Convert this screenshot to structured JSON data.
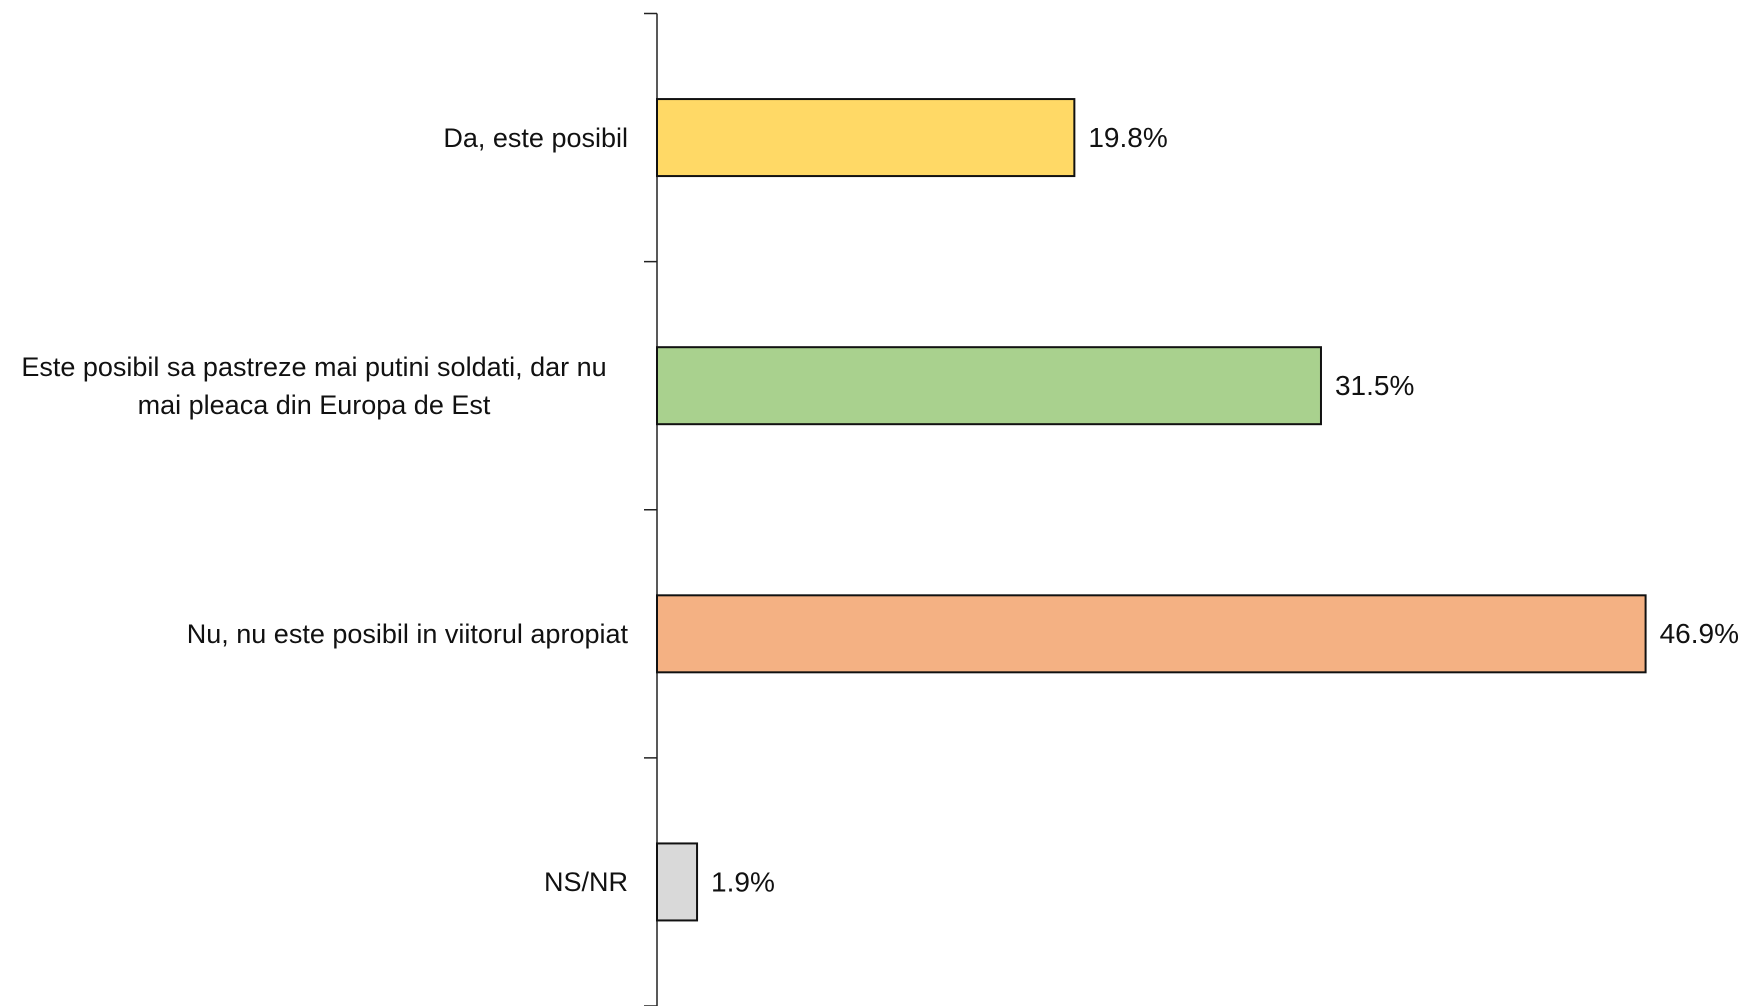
{
  "chart_data": {
    "type": "bar",
    "orientation": "horizontal",
    "categories": [
      "Da, este posibil",
      "Este posibil sa pastreze mai putini soldati, dar nu mai pleaca din Europa de Est",
      "Nu, nu este posibil in viitorul apropiat",
      "NS/NR"
    ],
    "values": [
      19.8,
      31.5,
      46.9,
      1.9
    ],
    "value_labels": [
      "19.8%",
      "31.5%",
      "46.9%",
      "1.9%"
    ],
    "colors": [
      "#ffd966",
      "#a9d18e",
      "#f4b183",
      "#d9d9d9"
    ]
  }
}
